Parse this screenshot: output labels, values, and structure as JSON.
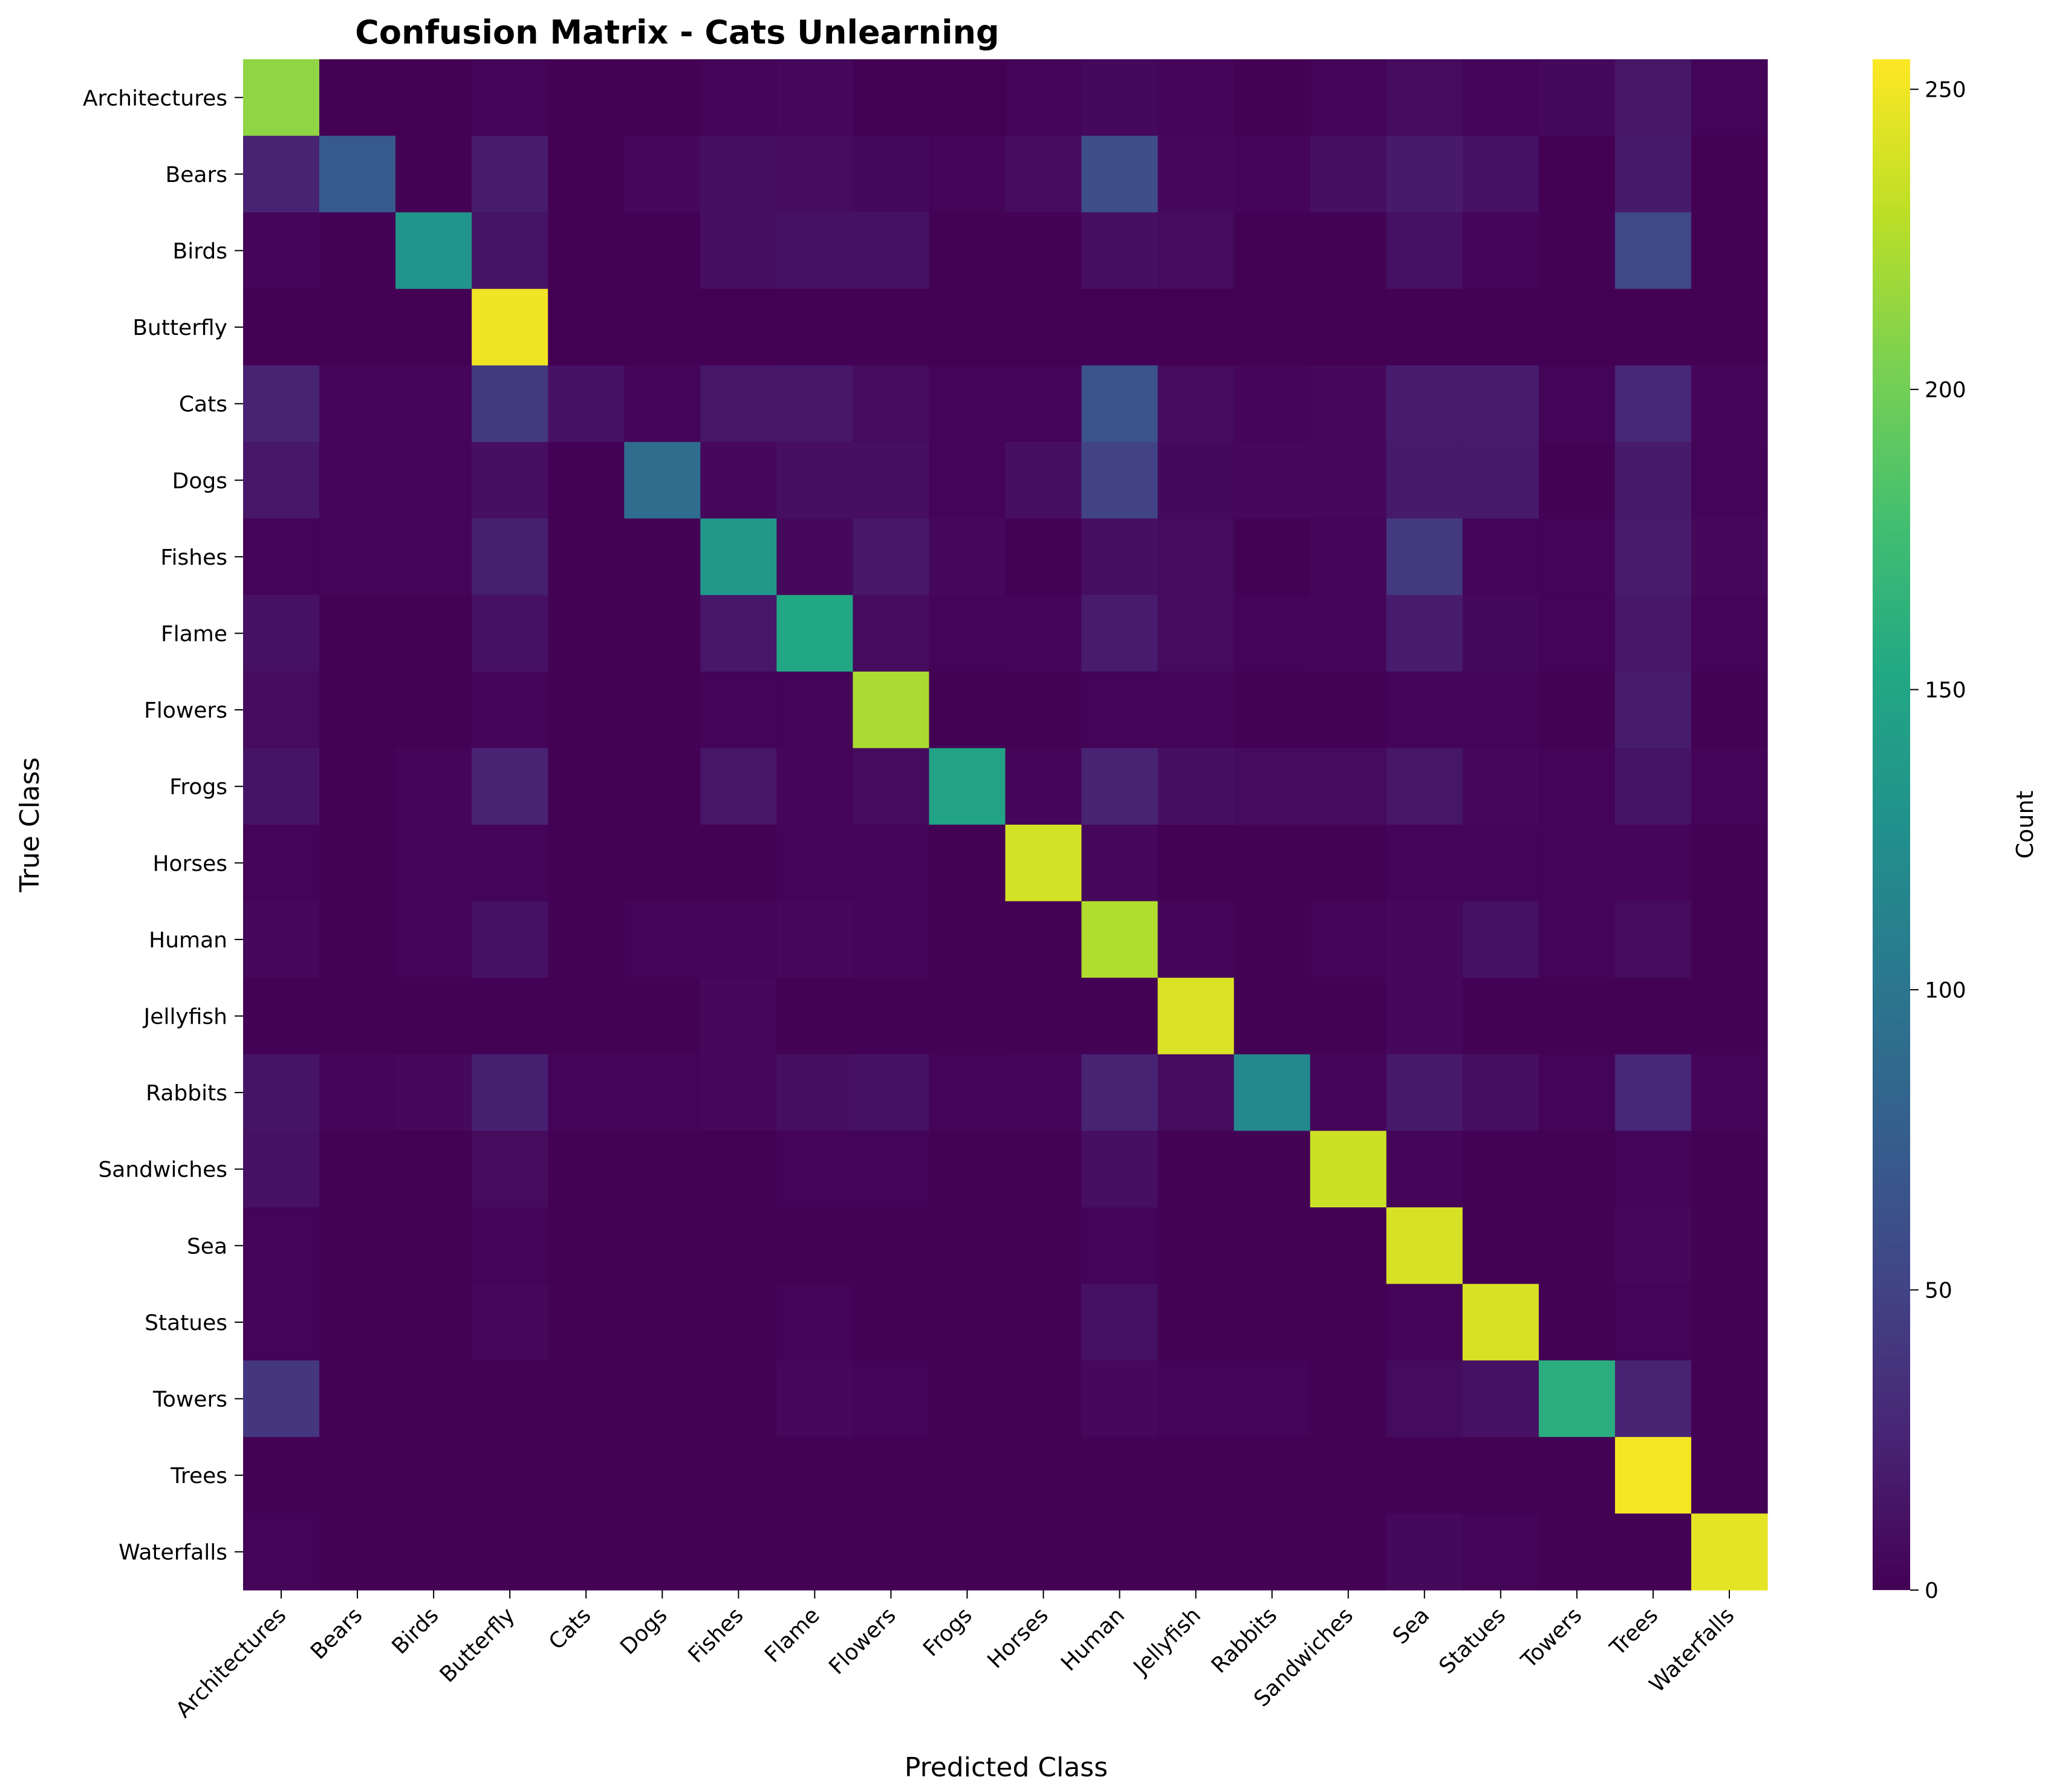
{
  "chart_data": {
    "type": "heatmap",
    "title": "Confusion Matrix - Cats Unlearning",
    "xlabel": "Predicted Class",
    "ylabel": "True Class",
    "colorbar_label": "Count",
    "colormap": "viridis",
    "colorbar_range": [
      0,
      255
    ],
    "colorbar_ticks": [
      0,
      50,
      100,
      150,
      200,
      250
    ],
    "row_labels": [
      "Architectures",
      "Bears",
      "Birds",
      "Butterfly",
      "Cats",
      "Dogs",
      "Fishes",
      "Flame",
      "Flowers",
      "Frogs",
      "Horses",
      "Human",
      "Jellyfish",
      "Rabbits",
      "Sandwiches",
      "Sea",
      "Statues",
      "Towers",
      "Trees",
      "Waterfalls"
    ],
    "col_labels": [
      "Architectures",
      "Bears",
      "Birds",
      "Butterfly",
      "Cats",
      "Dogs",
      "Fishes",
      "Flame",
      "Flowers",
      "Frogs",
      "Horses",
      "Human",
      "Jellyfish",
      "Rabbits",
      "Sandwiches",
      "Sea",
      "Statues",
      "Towers",
      "Trees",
      "Waterfalls"
    ],
    "matrix": [
      [
        212,
        0,
        0,
        2,
        1,
        1,
        2,
        5,
        1,
        0,
        2,
        6,
        4,
        1,
        2,
        8,
        3,
        6,
        15,
        3
      ],
      [
        25,
        72,
        1,
        20,
        1,
        5,
        10,
        8,
        6,
        2,
        8,
        60,
        5,
        4,
        10,
        18,
        12,
        0,
        18,
        0
      ],
      [
        4,
        1,
        132,
        14,
        1,
        1,
        10,
        12,
        12,
        1,
        1,
        10,
        8,
        1,
        1,
        12,
        3,
        1,
        55,
        0
      ],
      [
        0,
        0,
        0,
        250,
        0,
        0,
        0,
        1,
        1,
        0,
        0,
        0,
        0,
        0,
        0,
        1,
        0,
        0,
        1,
        0
      ],
      [
        25,
        4,
        4,
        42,
        12,
        4,
        15,
        15,
        8,
        2,
        2,
        65,
        8,
        4,
        5,
        20,
        20,
        2,
        28,
        4
      ],
      [
        16,
        3,
        3,
        10,
        1,
        90,
        5,
        10,
        10,
        2,
        10,
        50,
        6,
        5,
        5,
        18,
        18,
        1,
        18,
        2
      ],
      [
        2,
        2,
        2,
        22,
        1,
        1,
        135,
        5,
        16,
        5,
        1,
        10,
        8,
        1,
        4,
        42,
        2,
        2,
        20,
        5
      ],
      [
        12,
        1,
        1,
        12,
        1,
        1,
        16,
        152,
        8,
        2,
        3,
        20,
        8,
        2,
        4,
        20,
        6,
        2,
        16,
        2
      ],
      [
        8,
        1,
        1,
        4,
        1,
        1,
        2,
        2,
        222,
        1,
        1,
        2,
        2,
        1,
        1,
        3,
        2,
        1,
        20,
        1
      ],
      [
        14,
        1,
        4,
        25,
        1,
        1,
        15,
        4,
        7,
        148,
        4,
        25,
        10,
        7,
        7,
        15,
        5,
        2,
        14,
        2
      ],
      [
        2,
        1,
        2,
        2,
        1,
        1,
        1,
        2,
        2,
        1,
        238,
        5,
        1,
        1,
        1,
        3,
        2,
        2,
        4,
        1
      ],
      [
        5,
        1,
        2,
        12,
        1,
        2,
        2,
        5,
        3,
        1,
        1,
        225,
        2,
        1,
        2,
        5,
        12,
        2,
        8,
        1
      ],
      [
        1,
        1,
        1,
        1,
        1,
        1,
        5,
        1,
        1,
        1,
        1,
        1,
        242,
        1,
        1,
        5,
        1,
        1,
        1,
        1
      ],
      [
        14,
        4,
        5,
        22,
        3,
        3,
        5,
        10,
        12,
        2,
        3,
        25,
        8,
        118,
        3,
        18,
        10,
        2,
        28,
        2
      ],
      [
        12,
        1,
        1,
        8,
        1,
        1,
        1,
        2,
        2,
        1,
        1,
        10,
        1,
        1,
        235,
        4,
        1,
        1,
        2,
        1
      ],
      [
        2,
        1,
        1,
        2,
        1,
        1,
        1,
        1,
        1,
        1,
        1,
        3,
        1,
        1,
        1,
        240,
        1,
        1,
        5,
        1
      ],
      [
        2,
        1,
        1,
        5,
        1,
        1,
        1,
        2,
        1,
        1,
        1,
        12,
        1,
        1,
        1,
        2,
        240,
        1,
        2,
        1
      ],
      [
        40,
        1,
        1,
        1,
        1,
        1,
        1,
        5,
        2,
        1,
        1,
        5,
        2,
        2,
        1,
        8,
        12,
        160,
        25,
        1
      ],
      [
        1,
        1,
        1,
        1,
        1,
        1,
        1,
        1,
        1,
        1,
        1,
        1,
        1,
        1,
        1,
        1,
        1,
        1,
        252,
        1
      ],
      [
        3,
        1,
        1,
        1,
        1,
        1,
        1,
        1,
        1,
        1,
        1,
        1,
        1,
        1,
        1,
        6,
        2,
        1,
        1,
        245
      ]
    ]
  }
}
